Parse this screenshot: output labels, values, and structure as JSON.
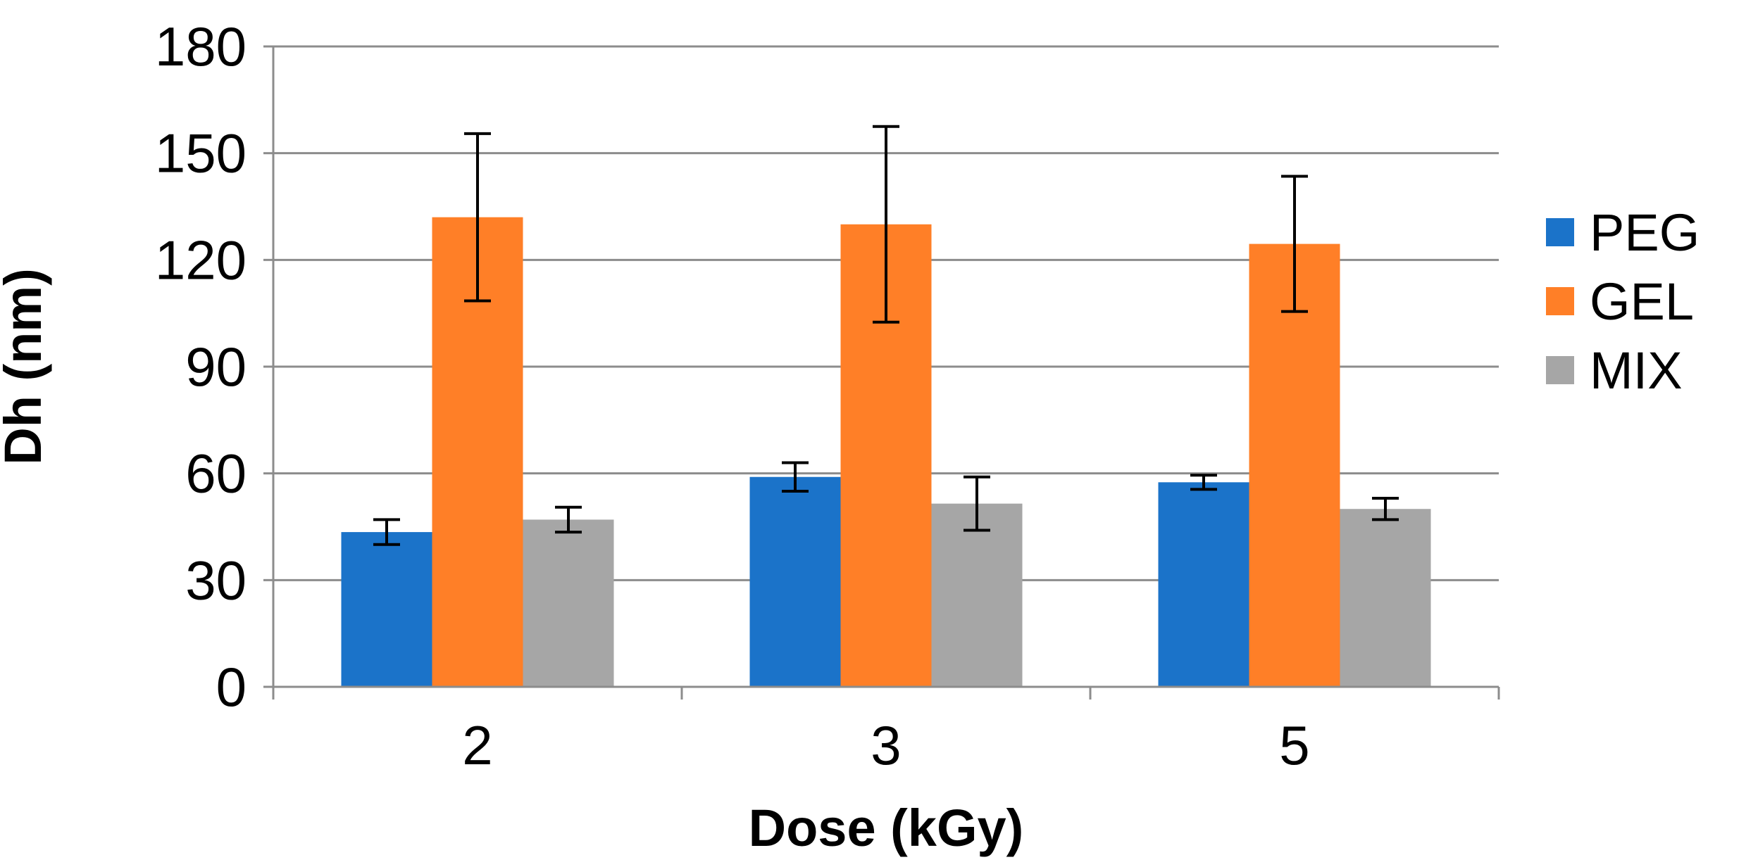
{
  "chart_data": {
    "type": "bar",
    "title": "",
    "xlabel": "Dose (kGy)",
    "ylabel": "Dh (nm)",
    "categories": [
      "2",
      "3",
      "5"
    ],
    "ylim": [
      0,
      180
    ],
    "yticks": [
      0,
      30,
      60,
      90,
      120,
      150,
      180
    ],
    "grid": true,
    "legend_position": "right",
    "series": [
      {
        "name": "PEG",
        "color": "#1b73c9",
        "values": [
          43.5,
          59,
          57.5
        ],
        "errors": [
          3.5,
          4,
          2
        ]
      },
      {
        "name": "GEL",
        "color": "#ff7f27",
        "values": [
          132,
          130,
          124.5
        ],
        "errors": [
          23.5,
          27.5,
          19
        ]
      },
      {
        "name": "MIX",
        "color": "#a6a6a6",
        "values": [
          47,
          51.5,
          50
        ],
        "errors": [
          3.5,
          7.5,
          3
        ]
      }
    ]
  }
}
